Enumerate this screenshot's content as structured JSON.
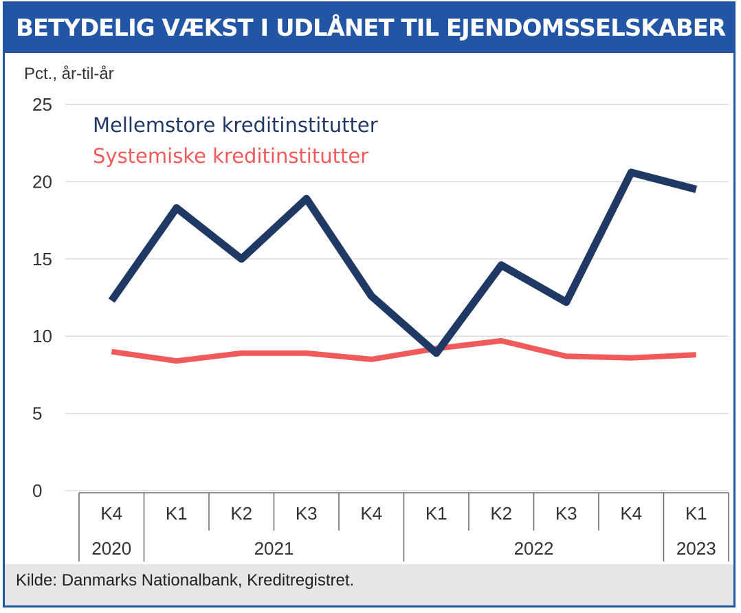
{
  "header": {
    "title": "BETYDELIG VÆKST I UDLÅNET TIL EJENDOMSSELSKABER"
  },
  "footer": {
    "source": "Kilde: Danmarks Nationalbank, Kreditregistret."
  },
  "colors": {
    "header_bg": "#2255a4",
    "series_dark": "#1f3864",
    "series_red": "#f05a5a",
    "footer_bg": "#e6e6e6"
  },
  "chart_data": {
    "type": "line",
    "ylabel": "Pct., år-til-år",
    "ylim": [
      0,
      25
    ],
    "yticks": [
      0,
      5,
      10,
      15,
      20,
      25
    ],
    "grid": true,
    "legend_placement": "top-left",
    "categories": [
      "K4",
      "K1",
      "K2",
      "K3",
      "K4",
      "K1",
      "K2",
      "K3",
      "K4",
      "K1"
    ],
    "year_groups": [
      {
        "label": "2020",
        "span": 1
      },
      {
        "label": "2021",
        "span": 4
      },
      {
        "label": "2022",
        "span": 4
      },
      {
        "label": "2023",
        "span": 1
      }
    ],
    "series": [
      {
        "name": "Mellemstore kreditinstitutter",
        "color": "#1f3864",
        "values": [
          12.3,
          18.3,
          15.0,
          18.9,
          12.6,
          8.9,
          14.6,
          12.2,
          20.6,
          19.5
        ]
      },
      {
        "name": "Systemiske kreditinstitutter",
        "color": "#f05a5a",
        "values": [
          9.0,
          8.4,
          8.9,
          8.9,
          8.5,
          9.2,
          9.7,
          8.7,
          8.6,
          8.8
        ]
      }
    ]
  }
}
